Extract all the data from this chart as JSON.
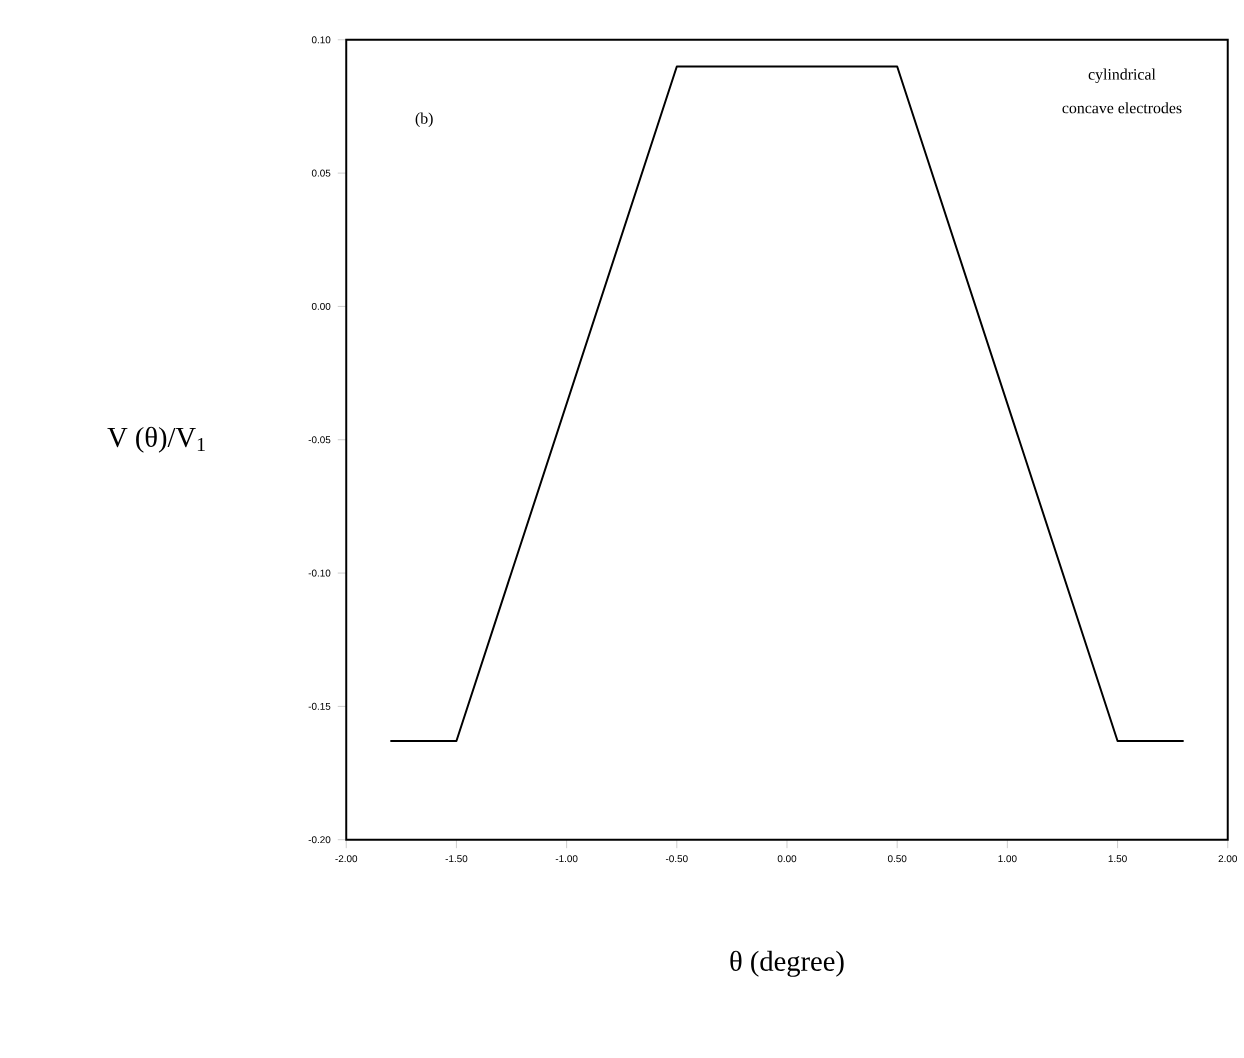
{
  "chart_data": {
    "type": "line",
    "xlabel": "θ (degree)",
    "ylabel": "V (θ)/V$_{1}$",
    "annotations": [
      "(b)",
      "cylindrical",
      "concave electrodes"
    ],
    "x": [
      -1.8,
      -1.5,
      -0.5,
      0.5,
      1.5,
      1.8
    ],
    "series": [
      {
        "color": "#000000",
        "values": [
          -0.163,
          -0.163,
          0.09,
          0.09,
          -0.163,
          -0.163
        ]
      }
    ],
    "xlim": [
      -2.0,
      2.0
    ],
    "xticks": [
      {
        "value": -2.0,
        "label": "-2.00"
      },
      {
        "value": -1.5,
        "label": "-1.50"
      },
      {
        "value": -1.0,
        "label": "-1.00"
      },
      {
        "value": -0.5,
        "label": "-0.50"
      },
      {
        "value": 0.0,
        "label": "0.00"
      },
      {
        "value": 0.5,
        "label": "0.50"
      },
      {
        "value": 1.0,
        "label": "1.00"
      },
      {
        "value": 1.5,
        "label": "1.50"
      },
      {
        "value": 2.0,
        "label": "2.00"
      }
    ],
    "ylim": [
      -0.2,
      0.1
    ],
    "yticks": [
      {
        "value": -0.2,
        "label": "-0.20"
      },
      {
        "value": -0.15,
        "label": "-0.15"
      },
      {
        "value": -0.1,
        "label": "-0.10"
      },
      {
        "value": -0.05,
        "label": "-0.05"
      },
      {
        "value": 0.0,
        "label": "0.00"
      },
      {
        "value": 0.05,
        "label": "0.05"
      },
      {
        "value": 0.1,
        "label": "0.10"
      }
    ],
    "grid": false,
    "marker": "none",
    "line_style": "solid"
  }
}
